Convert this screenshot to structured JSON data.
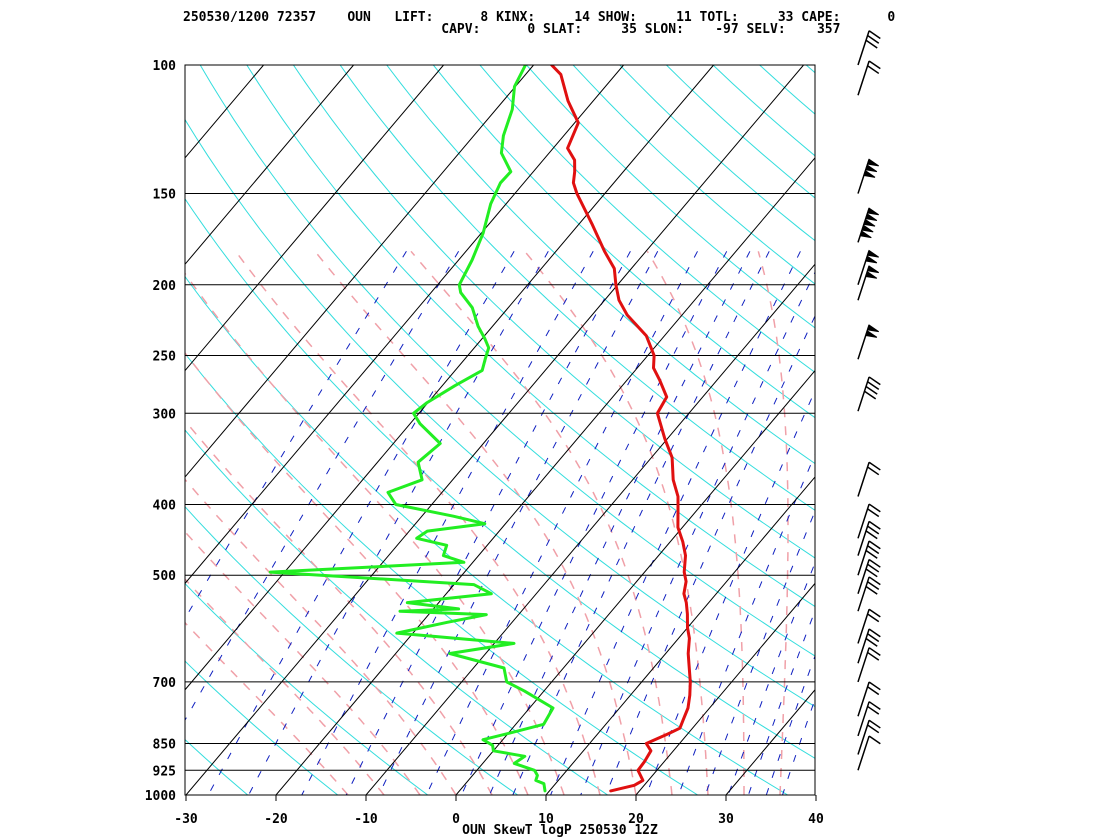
{
  "header": {
    "line1": "250530/1200 72357    OUN   LIFT:      8 KINX:     14 SHOW:     11 TOTL:     33 CAPE:      0",
    "line2": "                                 CAPV:      0 SLAT:     35 SLON:    -97 SELV:    357"
  },
  "footer": "OUN SkewT logP 250530 12Z",
  "colors": {
    "temperature": "#e01010",
    "dewpoint": "#22ee22",
    "isotherm": "#000000",
    "dry_adiabat": "#33dddd",
    "moist_adiabat": "#f0a0a8",
    "mixing_ratio": "#1020c0",
    "wind": "#000000"
  },
  "chart_data": {
    "type": "skew-t log-p",
    "xlabel": "",
    "ylabel": "",
    "x_ticks": [
      -30,
      -20,
      -10,
      0,
      10,
      20,
      30,
      40
    ],
    "xlim": [
      -30,
      40
    ],
    "pressure_levels": [
      100,
      150,
      200,
      250,
      300,
      400,
      500,
      700,
      850,
      925,
      1000
    ],
    "ylim": [
      1000,
      100
    ],
    "y_scale": "log",
    "grid": true,
    "series": [
      {
        "key": "temperature",
        "points": [
          [
            987,
            16.8
          ],
          [
            970,
            18.9
          ],
          [
            955,
            19.4
          ],
          [
            925,
            17.9
          ],
          [
            900,
            17.8
          ],
          [
            870,
            17.5
          ],
          [
            850,
            16.3
          ],
          [
            825,
            17.8
          ],
          [
            810,
            18.6
          ],
          [
            790,
            18.2
          ],
          [
            760,
            17.6
          ],
          [
            730,
            16.6
          ],
          [
            700,
            15.4
          ],
          [
            660,
            13.5
          ],
          [
            640,
            12.5
          ],
          [
            610,
            11.2
          ],
          [
            590,
            10.0
          ],
          [
            565,
            8.7
          ],
          [
            545,
            7.5
          ],
          [
            530,
            6.4
          ],
          [
            510,
            5.5
          ],
          [
            495,
            4.4
          ],
          [
            470,
            3.0
          ],
          [
            450,
            1.4
          ],
          [
            430,
            -0.5
          ],
          [
            410,
            -1.9
          ],
          [
            390,
            -3.4
          ],
          [
            370,
            -5.5
          ],
          [
            345,
            -7.7
          ],
          [
            325,
            -10.3
          ],
          [
            300,
            -13.5
          ],
          [
            285,
            -14.0
          ],
          [
            270,
            -16.4
          ],
          [
            260,
            -18.2
          ],
          [
            250,
            -19.3
          ],
          [
            235,
            -22.0
          ],
          [
            220,
            -26.1
          ],
          [
            210,
            -28.4
          ],
          [
            200,
            -30.2
          ],
          [
            190,
            -31.9
          ],
          [
            180,
            -34.6
          ],
          [
            165,
            -38.6
          ],
          [
            150,
            -43.1
          ],
          [
            145,
            -44.5
          ],
          [
            140,
            -45.4
          ],
          [
            135,
            -46.5
          ],
          [
            130,
            -48.4
          ],
          [
            120,
            -49.6
          ],
          [
            112,
            -52.8
          ],
          [
            103,
            -56.1
          ],
          [
            100,
            -58.0
          ]
        ]
      },
      {
        "key": "dewpoint",
        "points": [
          [
            987,
            9.5
          ],
          [
            965,
            8.7
          ],
          [
            955,
            7.5
          ],
          [
            940,
            7.2
          ],
          [
            925,
            6.4
          ],
          [
            905,
            3.5
          ],
          [
            885,
            4.0
          ],
          [
            870,
            0.0
          ],
          [
            855,
            -0.6
          ],
          [
            840,
            -2.2
          ],
          [
            820,
            0.5
          ],
          [
            800,
            3.1
          ],
          [
            760,
            2.6
          ],
          [
            720,
            -2.2
          ],
          [
            700,
            -5.0
          ],
          [
            670,
            -6.6
          ],
          [
            640,
            -14.0
          ],
          [
            620,
            -7.8
          ],
          [
            600,
            -21.8
          ],
          [
            580,
            -17.2
          ],
          [
            566,
            -13.6
          ],
          [
            560,
            -23.5
          ],
          [
            556,
            -17.2
          ],
          [
            545,
            -23.5
          ],
          [
            530,
            -15.0
          ],
          [
            515,
            -17.8
          ],
          [
            495,
            -41.6
          ],
          [
            480,
            -21.0
          ],
          [
            470,
            -23.9
          ],
          [
            455,
            -24.5
          ],
          [
            445,
            -28.5
          ],
          [
            435,
            -28.0
          ],
          [
            425,
            -22.3
          ],
          [
            415,
            -26.5
          ],
          [
            400,
            -34.0
          ],
          [
            385,
            -36.0
          ],
          [
            370,
            -33.4
          ],
          [
            350,
            -35.5
          ],
          [
            330,
            -34.8
          ],
          [
            310,
            -38.9
          ],
          [
            300,
            -40.6
          ],
          [
            290,
            -40.1
          ],
          [
            275,
            -38.6
          ],
          [
            262,
            -37.0
          ],
          [
            252,
            -37.8
          ],
          [
            244,
            -38.4
          ],
          [
            237,
            -39.7
          ],
          [
            228,
            -41.6
          ],
          [
            215,
            -44.0
          ],
          [
            205,
            -46.7
          ],
          [
            200,
            -47.6
          ],
          [
            185,
            -48.5
          ],
          [
            170,
            -49.8
          ],
          [
            155,
            -51.7
          ],
          [
            145,
            -52.6
          ],
          [
            140,
            -52.5
          ],
          [
            132,
            -55.3
          ],
          [
            125,
            -56.7
          ],
          [
            115,
            -58.2
          ],
          [
            107,
            -60.1
          ],
          [
            100,
            -60.9
          ]
        ]
      }
    ],
    "wind_levels": [
      {
        "p": 100,
        "pennants": 0,
        "full": 3,
        "half": 0
      },
      {
        "p": 110,
        "pennants": 0,
        "full": 2,
        "half": 0
      },
      {
        "p": 150,
        "pennants": 3,
        "full": 0,
        "half": 0
      },
      {
        "p": 175,
        "pennants": 5,
        "full": 0,
        "half": 0
      },
      {
        "p": 200,
        "pennants": 2,
        "full": 0,
        "half": 0
      },
      {
        "p": 210,
        "pennants": 2,
        "full": 0,
        "half": 0
      },
      {
        "p": 253,
        "pennants": 2,
        "full": 0,
        "half": 0
      },
      {
        "p": 298,
        "pennants": 0,
        "full": 4,
        "half": 0
      },
      {
        "p": 390,
        "pennants": 0,
        "full": 2,
        "half": 0
      },
      {
        "p": 445,
        "pennants": 0,
        "full": 2,
        "half": 0
      },
      {
        "p": 470,
        "pennants": 0,
        "full": 3,
        "half": 0
      },
      {
        "p": 500,
        "pennants": 0,
        "full": 3,
        "half": 0
      },
      {
        "p": 530,
        "pennants": 0,
        "full": 3,
        "half": 0
      },
      {
        "p": 560,
        "pennants": 0,
        "full": 3,
        "half": 0
      },
      {
        "p": 620,
        "pennants": 0,
        "full": 2,
        "half": 0
      },
      {
        "p": 660,
        "pennants": 0,
        "full": 3,
        "half": 0
      },
      {
        "p": 700,
        "pennants": 0,
        "full": 2,
        "half": 0
      },
      {
        "p": 780,
        "pennants": 0,
        "full": 2,
        "half": 0
      },
      {
        "p": 830,
        "pennants": 0,
        "full": 2,
        "half": 0
      },
      {
        "p": 880,
        "pennants": 0,
        "full": 2,
        "half": 0
      },
      {
        "p": 925,
        "pennants": 0,
        "full": 1,
        "half": 0
      }
    ]
  }
}
